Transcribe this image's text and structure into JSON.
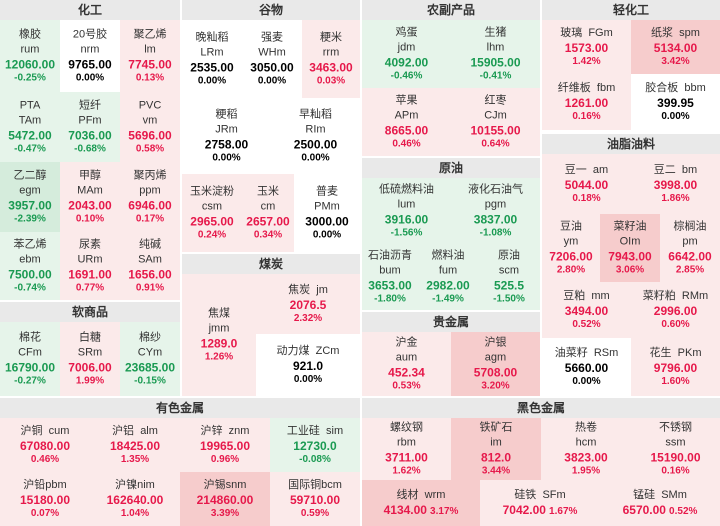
{
  "sections": {
    "chemical": "化工",
    "grains": "谷物",
    "agri": "农副产品",
    "light": "轻化工",
    "oils": "油脂油料",
    "crude": "原油",
    "soft": "软商品",
    "coal": "煤炭",
    "precious": "贵金属",
    "nonferrous": "有色金属",
    "ferrous": "黑色金属"
  },
  "chemical": [
    {
      "name": "橡胶",
      "code": "rum",
      "price": "12060.00",
      "pct": "-0.25%"
    },
    {
      "name": "20号胶",
      "code": "nrm",
      "price": "9765.00",
      "pct": "0.00%"
    },
    {
      "name": "聚乙烯",
      "code": "lm",
      "price": "7745.00",
      "pct": "0.13%"
    },
    {
      "name": "PTA",
      "code": "TAm",
      "price": "5472.00",
      "pct": "-0.47%"
    },
    {
      "name": "短纤",
      "code": "PFm",
      "price": "7036.00",
      "pct": "-0.68%"
    },
    {
      "name": "PVC",
      "code": "vm",
      "price": "5696.00",
      "pct": "0.58%"
    },
    {
      "name": "乙二醇",
      "code": "egm",
      "price": "3957.00",
      "pct": "-2.39%"
    },
    {
      "name": "甲醇",
      "code": "MAm",
      "price": "2043.00",
      "pct": "0.10%"
    },
    {
      "name": "聚丙烯",
      "code": "ppm",
      "price": "6946.00",
      "pct": "0.17%"
    },
    {
      "name": "苯乙烯",
      "code": "ebm",
      "price": "7500.00",
      "pct": "-0.74%"
    },
    {
      "name": "尿素",
      "code": "URm",
      "price": "1691.00",
      "pct": "0.77%"
    },
    {
      "name": "纯碱",
      "code": "SAm",
      "price": "1656.00",
      "pct": "0.91%"
    }
  ],
  "soft": [
    {
      "name": "棉花",
      "code": "CFm",
      "price": "16790.00",
      "pct": "-0.27%"
    },
    {
      "name": "白糖",
      "code": "SRm",
      "price": "7006.00",
      "pct": "1.99%"
    },
    {
      "name": "棉纱",
      "code": "CYm",
      "price": "23685.00",
      "pct": "-0.15%"
    }
  ],
  "grains": [
    {
      "name": "晚籼稻",
      "code": "LRm",
      "price": "2535.00",
      "pct": "0.00%"
    },
    {
      "name": "强麦",
      "code": "WHm",
      "price": "3050.00",
      "pct": "0.00%"
    },
    {
      "name": "粳米",
      "code": "rrm",
      "price": "3463.00",
      "pct": "0.03%"
    },
    {
      "name": "粳稻",
      "code": "JRm",
      "price": "2758.00",
      "pct": "0.00%"
    },
    {
      "name": "早籼稻",
      "code": "RIm",
      "price": "2500.00",
      "pct": "0.00%"
    },
    {
      "name": "玉米淀粉",
      "code": "csm",
      "price": "2965.00",
      "pct": "0.24%"
    },
    {
      "name": "玉米",
      "code": "cm",
      "price": "2657.00",
      "pct": "0.34%"
    },
    {
      "name": "普麦",
      "code": "PMm",
      "price": "3000.00",
      "pct": "0.00%"
    }
  ],
  "coal": [
    {
      "name": "焦煤",
      "code": "jmm",
      "price": "1289.0",
      "pct": "1.26%"
    },
    {
      "name": "焦炭",
      "code": "jm",
      "price": "2076.5",
      "pct": "2.32%"
    },
    {
      "name": "动力煤",
      "code": "ZCm",
      "price": "921.0",
      "pct": "0.00%"
    }
  ],
  "agri": [
    {
      "name": "鸡蛋",
      "code": "jdm",
      "price": "4092.00",
      "pct": "-0.46%"
    },
    {
      "name": "生猪",
      "code": "lhm",
      "price": "15905.00",
      "pct": "-0.41%"
    },
    {
      "name": "苹果",
      "code": "APm",
      "price": "8665.00",
      "pct": "0.46%"
    },
    {
      "name": "红枣",
      "code": "CJm",
      "price": "10155.00",
      "pct": "0.64%"
    }
  ],
  "crude": [
    {
      "name": "低硫燃料油",
      "code": "lum",
      "price": "3916.00",
      "pct": "-1.56%"
    },
    {
      "name": "液化石油气",
      "code": "pgm",
      "price": "3837.00",
      "pct": "-1.08%"
    },
    {
      "name": "石油沥青",
      "code": "bum",
      "price": "3653.00",
      "pct": "-1.80%"
    },
    {
      "name": "燃料油",
      "code": "fum",
      "price": "2982.00",
      "pct": "-1.49%"
    },
    {
      "name": "原油",
      "code": "scm",
      "price": "525.5",
      "pct": "-1.50%"
    }
  ],
  "precious": [
    {
      "name": "沪金",
      "code": "aum",
      "price": "452.34",
      "pct": "0.53%"
    },
    {
      "name": "沪银",
      "code": "agm",
      "price": "5708.00",
      "pct": "3.20%"
    }
  ],
  "light": [
    {
      "name": "玻璃",
      "code": "FGm",
      "price": "1573.00",
      "pct": "1.42%"
    },
    {
      "name": "纸浆",
      "code": "spm",
      "price": "5134.00",
      "pct": "3.42%"
    },
    {
      "name": "纤维板",
      "code": "fbm",
      "price": "1261.00",
      "pct": "0.16%"
    },
    {
      "name": "胶合板",
      "code": "bbm",
      "price": "399.95",
      "pct": "0.00%"
    }
  ],
  "oils": [
    {
      "name": "豆一",
      "code": "am",
      "price": "5044.00",
      "pct": "0.18%"
    },
    {
      "name": "豆二",
      "code": "bm",
      "price": "3998.00",
      "pct": "1.86%"
    },
    {
      "name": "豆油",
      "code": "ym",
      "price": "7206.00",
      "pct": "2.80%"
    },
    {
      "name": "菜籽油",
      "code": "OIm",
      "price": "7943.00",
      "pct": "3.06%"
    },
    {
      "name": "棕榈油",
      "code": "pm",
      "price": "6642.00",
      "pct": "2.85%"
    },
    {
      "name": "豆粕",
      "code": "mm",
      "price": "3494.00",
      "pct": "0.52%"
    },
    {
      "name": "菜籽粕",
      "code": "RMm",
      "price": "2996.00",
      "pct": "0.60%"
    },
    {
      "name": "油菜籽",
      "code": "RSm",
      "price": "5660.00",
      "pct": "0.00%"
    },
    {
      "name": "花生",
      "code": "PKm",
      "price": "9796.00",
      "pct": "1.60%"
    }
  ],
  "nonferrous": [
    {
      "name": "沪铜",
      "code": "cum",
      "price": "67080.00",
      "pct": "0.46%"
    },
    {
      "name": "沪铝",
      "code": "alm",
      "price": "18425.00",
      "pct": "1.35%"
    },
    {
      "name": "沪锌",
      "code": "znm",
      "price": "19965.00",
      "pct": "0.96%"
    },
    {
      "name": "工业硅",
      "code": "sim",
      "price": "12730.0",
      "pct": "-0.08%"
    },
    {
      "name": "沪铅",
      "code": "pbm",
      "price": "15180.00",
      "pct": "0.07%"
    },
    {
      "name": "沪镍",
      "code": "nim",
      "price": "162640.00",
      "pct": "1.04%"
    },
    {
      "name": "沪锡",
      "code": "snm",
      "price": "214860.00",
      "pct": "3.39%"
    },
    {
      "name": "国际铜",
      "code": "bcm",
      "price": "59710.00",
      "pct": "0.59%"
    }
  ],
  "ferrous": [
    {
      "name": "螺纹钢",
      "code": "rbm",
      "price": "3711.00",
      "pct": "1.62%"
    },
    {
      "name": "铁矿石",
      "code": "im",
      "price": "812.0",
      "pct": "3.44%"
    },
    {
      "name": "热卷",
      "code": "hcm",
      "price": "3823.00",
      "pct": "1.95%"
    },
    {
      "name": "不锈钢",
      "code": "ssm",
      "price": "15190.00",
      "pct": "0.16%"
    },
    {
      "name": "线材",
      "code": "wrm",
      "price": "4134.00",
      "pct": "3.17%"
    },
    {
      "name": "硅铁",
      "code": "SFm",
      "price": "7042.00",
      "pct": "1.67%"
    },
    {
      "name": "锰硅",
      "code": "SMm",
      "price": "6570.00",
      "pct": "0.52%"
    }
  ]
}
